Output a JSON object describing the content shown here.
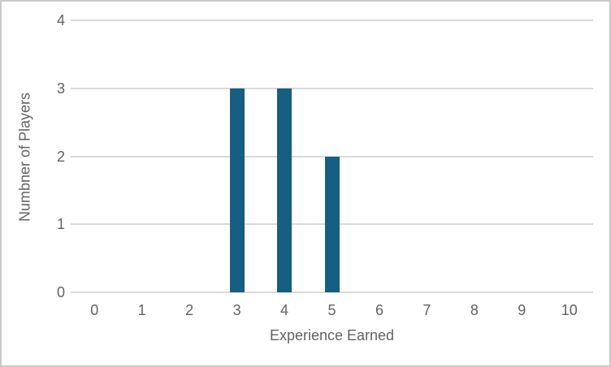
{
  "chart_data": {
    "type": "bar",
    "title": "",
    "xlabel": "Experience Earned",
    "ylabel": "Numbner of Players",
    "categories": [
      "0",
      "1",
      "2",
      "3",
      "4",
      "5",
      "6",
      "7",
      "8",
      "9",
      "10"
    ],
    "values": [
      0,
      0,
      0,
      3,
      3,
      2,
      0,
      0,
      0,
      0,
      0
    ],
    "ylim": [
      0,
      4
    ],
    "yticks": [
      0,
      1,
      2,
      3,
      4
    ],
    "grid": "horizontal",
    "legend_position": "none",
    "colors": {
      "bar": "#165e82",
      "gridline": "#d9d9d9",
      "axis_line": "#d9d9d9",
      "label_text": "#636363",
      "frame_border": "#c9c9c9",
      "background": "#ffffff"
    }
  }
}
